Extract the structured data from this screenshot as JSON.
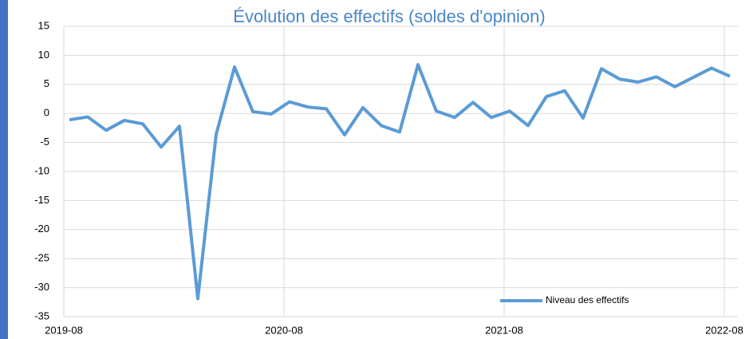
{
  "chart_data": {
    "type": "line",
    "title": "Évolution des effectifs (soldes d'opinion)",
    "x": [
      "2019-08",
      "2019-09",
      "2019-10",
      "2019-11",
      "2019-12",
      "2020-01",
      "2020-02",
      "2020-03",
      "2020-04",
      "2020-05",
      "2020-06",
      "2020-07",
      "2020-08",
      "2020-09",
      "2020-10",
      "2020-11",
      "2020-12",
      "2021-01",
      "2021-02",
      "2021-03",
      "2021-04",
      "2021-05",
      "2021-06",
      "2021-07",
      "2021-08",
      "2021-09",
      "2021-10",
      "2021-11",
      "2021-12",
      "2022-01",
      "2022-02",
      "2022-03",
      "2022-04",
      "2022-05",
      "2022-06",
      "2022-07",
      "2022-08"
    ],
    "series": [
      {
        "name": "Niveau des effectifs",
        "color": "#5b9bd5",
        "values": [
          -1.1,
          -0.6,
          -2.9,
          -1.2,
          -1.8,
          -5.8,
          -2.2,
          -31.9,
          -3.6,
          8.0,
          0.3,
          -0.1,
          2.0,
          1.1,
          0.8,
          -3.7,
          1.0,
          -2.1,
          -3.2,
          8.4,
          0.4,
          -0.7,
          1.9,
          -0.7,
          0.4,
          -2.1,
          2.9,
          3.9,
          -0.8,
          7.7,
          5.9,
          5.4,
          6.3,
          4.6,
          6.2,
          7.8,
          6.4
        ]
      }
    ],
    "xticks": [
      "2019-08",
      "2020-08",
      "2021-08",
      "2022-08"
    ],
    "ylim": [
      -35,
      15
    ],
    "yticks": [
      -35,
      -30,
      -25,
      -20,
      -15,
      -10,
      -5,
      0,
      5,
      10,
      15
    ],
    "grid": true,
    "legend": "bottom-right"
  }
}
